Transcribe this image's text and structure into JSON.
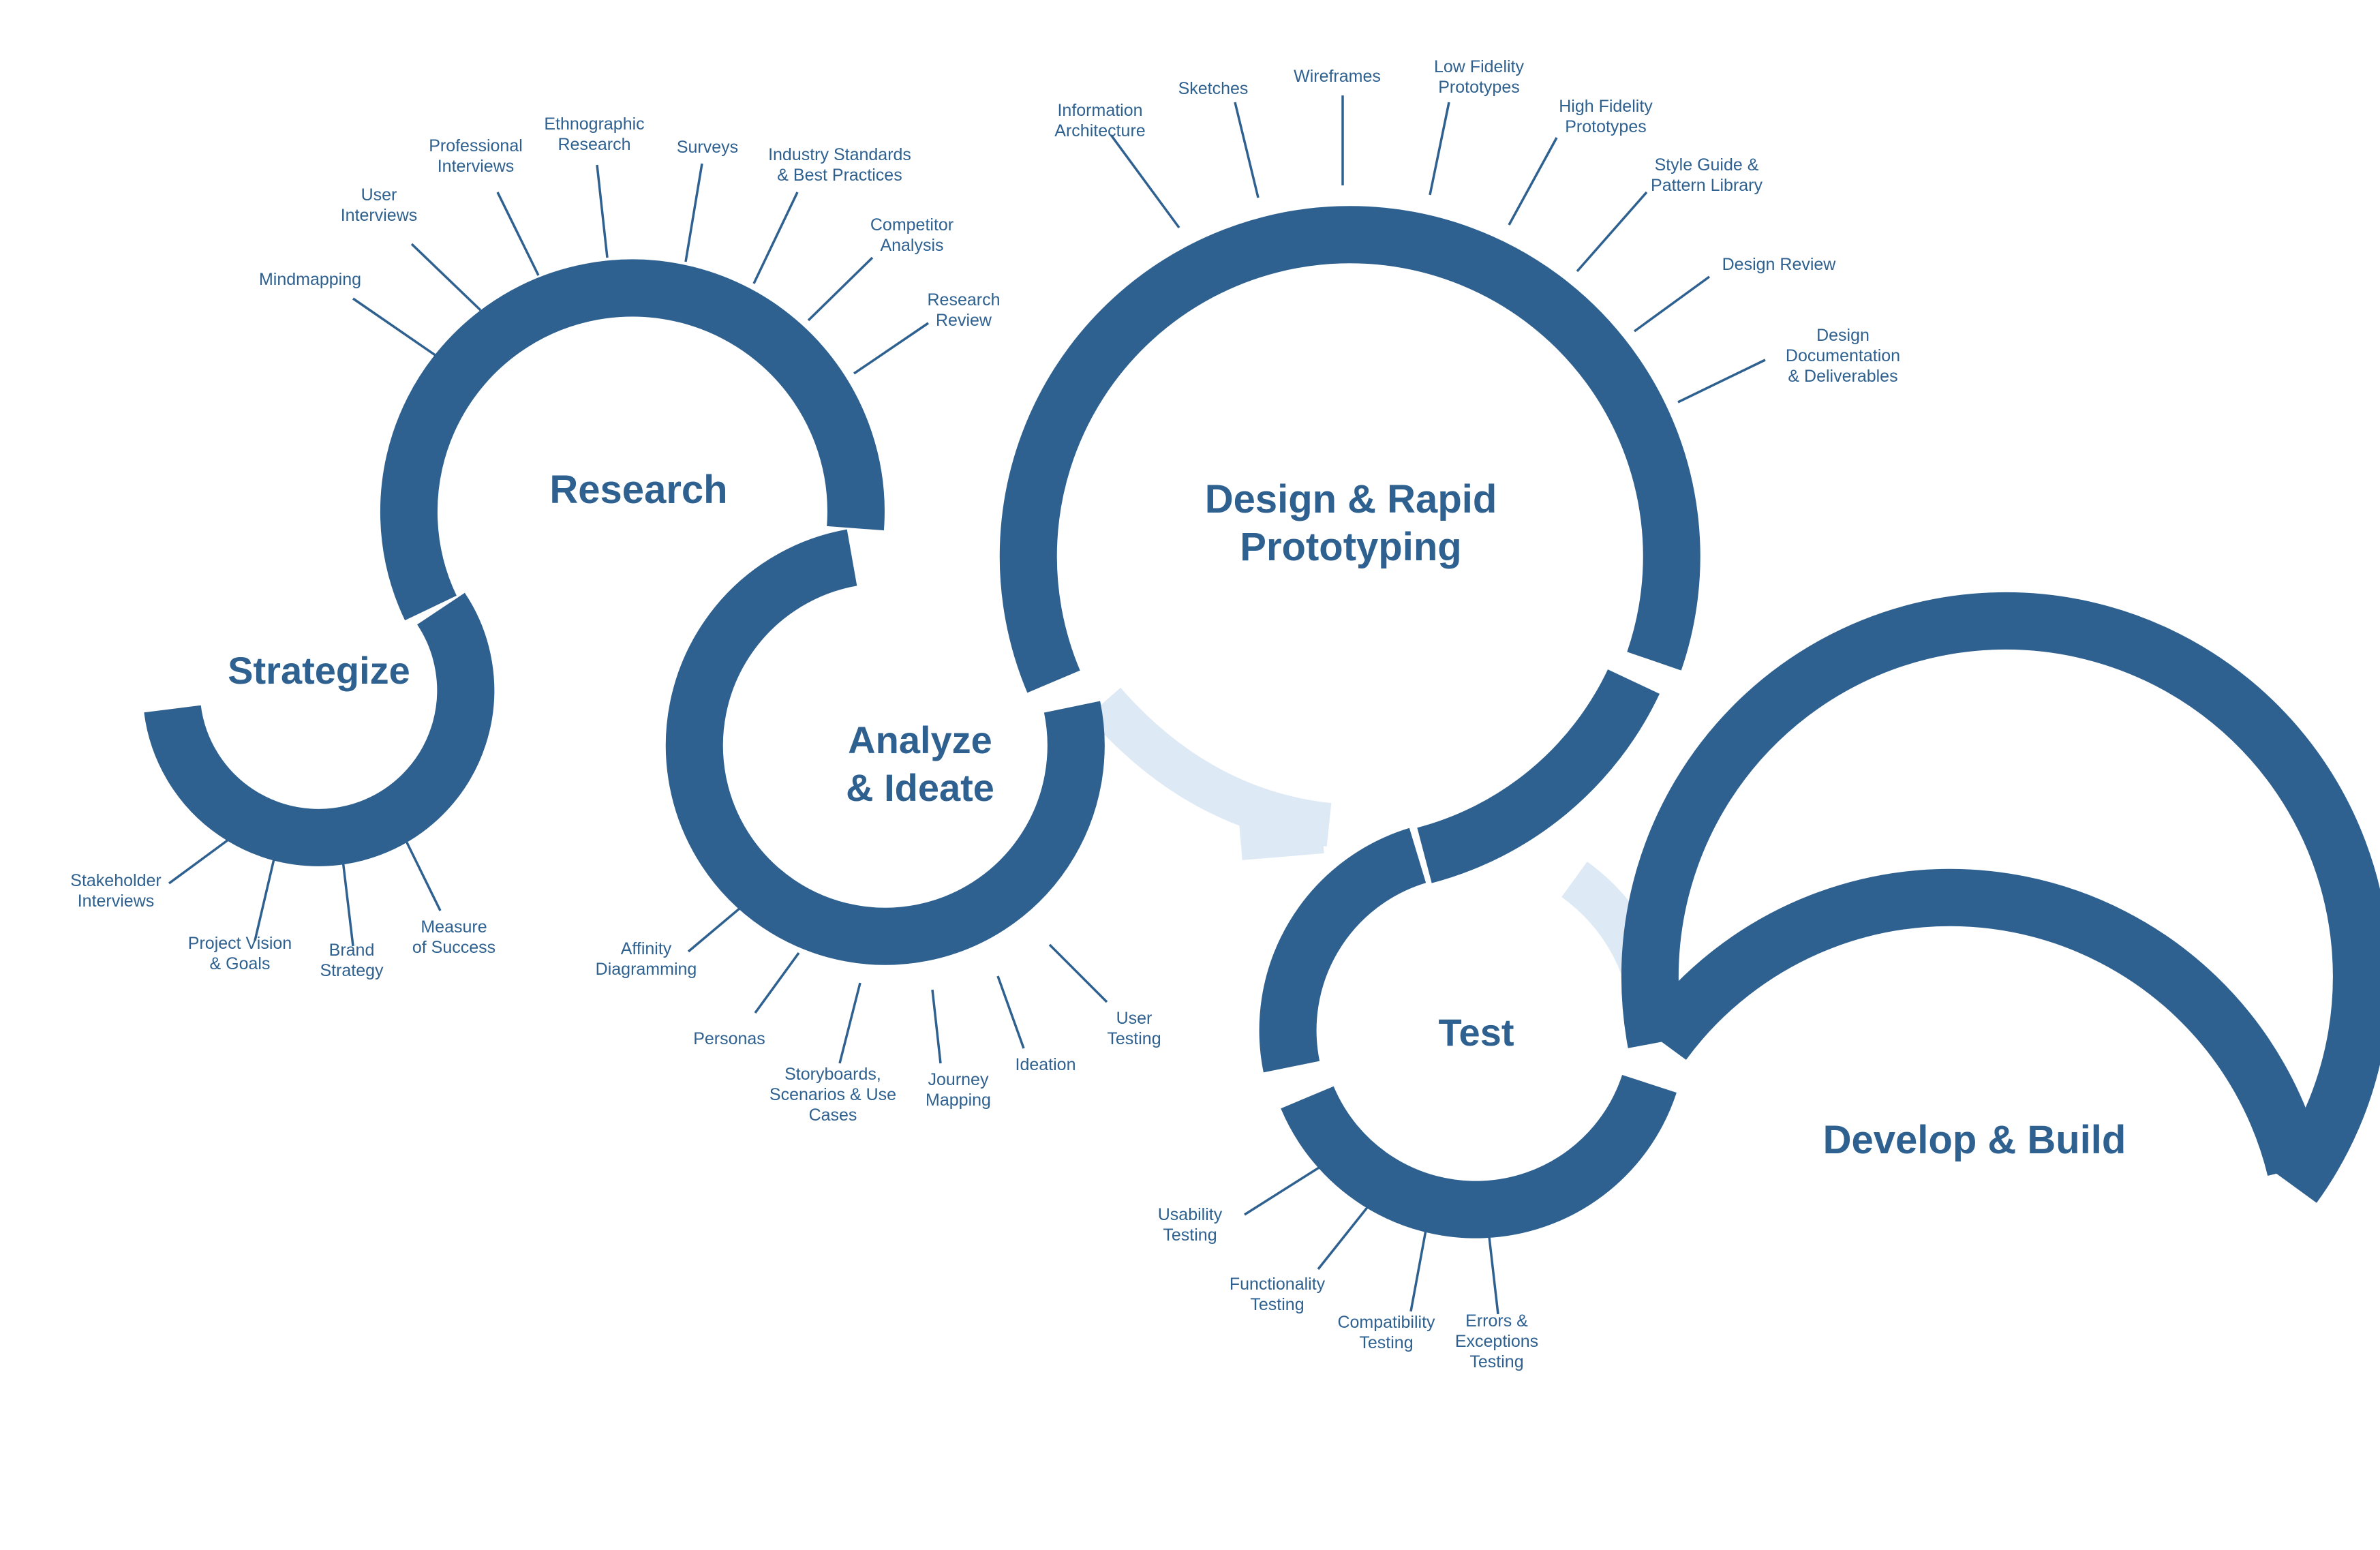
{
  "phases": {
    "strategize": {
      "title": [
        "Strategize"
      ],
      "items": [
        [
          "Stakeholder",
          "Interviews"
        ],
        [
          "Project Vision",
          "& Goals"
        ],
        [
          "Brand",
          "Strategy"
        ],
        [
          "Measure",
          "of Success"
        ]
      ]
    },
    "research": {
      "title": [
        "Research"
      ],
      "items": [
        [
          "Mindmapping"
        ],
        [
          "User",
          "Interviews"
        ],
        [
          "Professional",
          "Interviews"
        ],
        [
          "Ethnographic",
          "Research"
        ],
        [
          "Surveys"
        ],
        [
          "Industry Standards",
          "& Best Practices"
        ],
        [
          "Competitor",
          "Analysis"
        ],
        [
          "Research",
          "Review"
        ]
      ]
    },
    "analyze": {
      "title": [
        "Analyze",
        "& Ideate"
      ],
      "items": [
        [
          "Affinity",
          "Diagramming"
        ],
        [
          "Personas"
        ],
        [
          "Storyboards,",
          "Scenarios & Use",
          "Cases"
        ],
        [
          "Journey",
          "Mapping"
        ],
        [
          "Ideation"
        ],
        [
          "User",
          "Testing"
        ]
      ]
    },
    "design": {
      "title": [
        "Design & Rapid",
        "Prototyping"
      ],
      "items": [
        [
          "Information",
          "Architecture"
        ],
        [
          "Sketches"
        ],
        [
          "Wireframes"
        ],
        [
          "Low Fidelity",
          "Prototypes"
        ],
        [
          "High Fidelity",
          "Prototypes"
        ],
        [
          "Style Guide &",
          "Pattern Library"
        ],
        [
          "Design Review"
        ],
        [
          "Design",
          "Documentation",
          "& Deliverables"
        ]
      ]
    },
    "test": {
      "title": [
        "Test"
      ],
      "items": [
        [
          "Usability",
          "Testing"
        ],
        [
          "Functionality",
          "Testing"
        ],
        [
          "Compatibility",
          "Testing"
        ],
        [
          "Errors &",
          "Exceptions",
          "Testing"
        ]
      ]
    },
    "develop": {
      "title": [
        "Develop & Build"
      ],
      "items": []
    }
  },
  "colors": {
    "ring": "#2f6190",
    "connector": "#dde9f5",
    "text": "#2f6190",
    "background": "#ffffff"
  }
}
